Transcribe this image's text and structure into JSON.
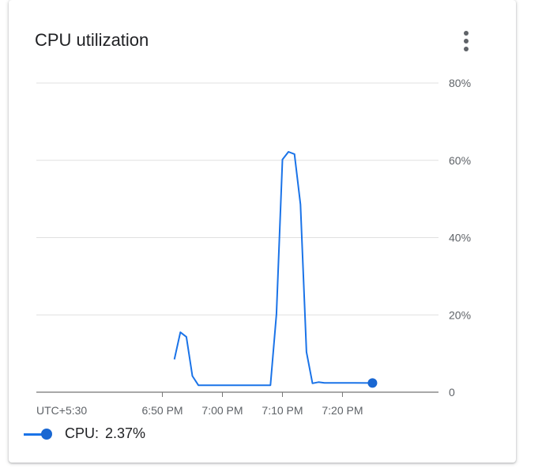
{
  "card": {
    "title": "CPU utilization",
    "menu_icon": "more-vert-icon"
  },
  "legend": {
    "series_label": "CPU:",
    "current_value": "2.37%"
  },
  "colors": {
    "line": "#1a73e8",
    "marker": "#1967d2",
    "grid": "#e0e0e0",
    "axis": "#757575",
    "text": "#5f6368"
  },
  "chart_data": {
    "type": "line",
    "title": "CPU utilization",
    "xlabel": "",
    "ylabel": "",
    "timezone_label": "UTC+5:30",
    "x_ticks": [
      {
        "label": "6:50 PM",
        "t": "18:50"
      },
      {
        "label": "7:00 PM",
        "t": "19:00"
      },
      {
        "label": "7:10 PM",
        "t": "19:10"
      },
      {
        "label": "7:20 PM",
        "t": "19:20"
      }
    ],
    "y_ticks": [
      "0",
      "20%",
      "40%",
      "60%",
      "80%"
    ],
    "y_tick_values": [
      0,
      20,
      40,
      60,
      80
    ],
    "ylim": [
      0,
      80
    ],
    "xlim": [
      "18:29",
      "19:36"
    ],
    "grid": true,
    "y_axis_side": "right",
    "legend_position": "bottom-left",
    "series": [
      {
        "name": "CPU",
        "points": [
          {
            "t": "18:52",
            "v": 8.5
          },
          {
            "t": "18:53",
            "v": 15.5
          },
          {
            "t": "18:54",
            "v": 14.3
          },
          {
            "t": "18:55",
            "v": 4.2
          },
          {
            "t": "18:56",
            "v": 1.8
          },
          {
            "t": "18:57",
            "v": 1.8
          },
          {
            "t": "18:58",
            "v": 1.8
          },
          {
            "t": "18:59",
            "v": 1.8
          },
          {
            "t": "19:00",
            "v": 1.8
          },
          {
            "t": "19:01",
            "v": 1.8
          },
          {
            "t": "19:02",
            "v": 1.8
          },
          {
            "t": "19:03",
            "v": 1.8
          },
          {
            "t": "19:04",
            "v": 1.8
          },
          {
            "t": "19:05",
            "v": 1.8
          },
          {
            "t": "19:06",
            "v": 1.8
          },
          {
            "t": "19:07",
            "v": 1.8
          },
          {
            "t": "19:08",
            "v": 1.8
          },
          {
            "t": "19:09",
            "v": 20.2
          },
          {
            "t": "19:10",
            "v": 60.2
          },
          {
            "t": "19:11",
            "v": 62.2
          },
          {
            "t": "19:12",
            "v": 61.6
          },
          {
            "t": "19:13",
            "v": 48.6
          },
          {
            "t": "19:14",
            "v": 10.4
          },
          {
            "t": "19:15",
            "v": 2.3
          },
          {
            "t": "19:16",
            "v": 2.6
          },
          {
            "t": "19:17",
            "v": 2.4
          },
          {
            "t": "19:18",
            "v": 2.4
          },
          {
            "t": "19:20",
            "v": 2.4
          },
          {
            "t": "19:22",
            "v": 2.4
          },
          {
            "t": "19:25",
            "v": 2.37
          }
        ],
        "last_value": 2.37
      }
    ]
  }
}
